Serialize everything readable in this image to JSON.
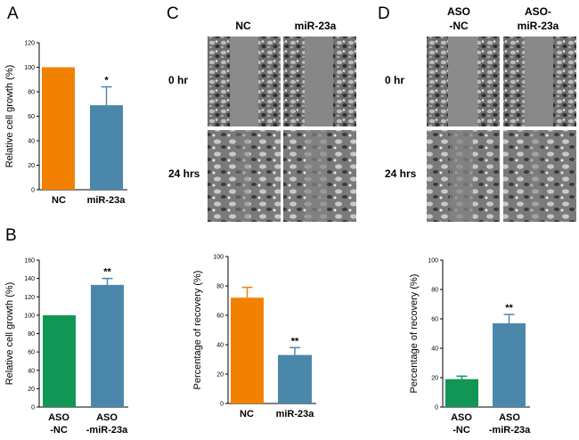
{
  "panel_labels": {
    "a": "A",
    "b": "B",
    "c": "C",
    "d": "D"
  },
  "micrographs": {
    "c": {
      "columns": [
        "NC",
        "miR-23a"
      ],
      "rows": [
        "0 hr",
        "24 hrs"
      ]
    },
    "d": {
      "columns": [
        [
          "ASO",
          "-NC"
        ],
        [
          "ASO-",
          "miR-23a"
        ]
      ],
      "rows": [
        "0 hr",
        "24 hrs"
      ]
    }
  },
  "colors": {
    "orange": "#f28100",
    "blue": "#4b87ab",
    "green": "#129656",
    "error": "#4b87ab"
  },
  "chart_data": [
    {
      "id": "a",
      "type": "bar",
      "categories": [
        [
          "NC"
        ],
        [
          "miR-23a"
        ]
      ],
      "values": [
        100,
        69
      ],
      "errors": [
        0,
        15
      ],
      "bar_colors": [
        "orange",
        "blue"
      ],
      "significance": [
        "",
        "*"
      ],
      "ylabel": "Relative  cell growth (%)",
      "ylim": [
        0,
        120
      ],
      "yticks": [
        0,
        20,
        40,
        60,
        80,
        100,
        120
      ]
    },
    {
      "id": "b",
      "type": "bar",
      "categories": [
        [
          "ASO",
          "-NC"
        ],
        [
          "ASO",
          "-miR-23a"
        ]
      ],
      "values": [
        100,
        133
      ],
      "errors": [
        0,
        7
      ],
      "bar_colors": [
        "green",
        "blue"
      ],
      "significance": [
        "",
        "**"
      ],
      "ylabel": "Relative  cell growth (%)",
      "ylim": [
        0,
        160
      ],
      "yticks": [
        0,
        20,
        40,
        60,
        80,
        100,
        120,
        140,
        160
      ]
    },
    {
      "id": "c",
      "type": "bar",
      "categories": [
        [
          "NC"
        ],
        [
          "miR-23a"
        ]
      ],
      "values": [
        72,
        33
      ],
      "errors": [
        7,
        5
      ],
      "bar_colors": [
        "orange",
        "blue"
      ],
      "significance": [
        "",
        "**"
      ],
      "ylabel": "Percentage of recovery (%)",
      "ylim": [
        0,
        100
      ],
      "yticks": [
        0,
        20,
        40,
        60,
        80,
        100
      ]
    },
    {
      "id": "d",
      "type": "bar",
      "categories": [
        [
          "ASO",
          "-NC"
        ],
        [
          "ASO",
          "-miR-23a"
        ]
      ],
      "values": [
        19,
        57
      ],
      "errors": [
        2,
        6
      ],
      "bar_colors": [
        "green",
        "blue"
      ],
      "significance": [
        "",
        "**"
      ],
      "ylabel": "Percentage of recovery (%)",
      "ylim": [
        0,
        100
      ],
      "yticks": [
        0,
        20,
        40,
        60,
        80,
        100
      ]
    }
  ]
}
